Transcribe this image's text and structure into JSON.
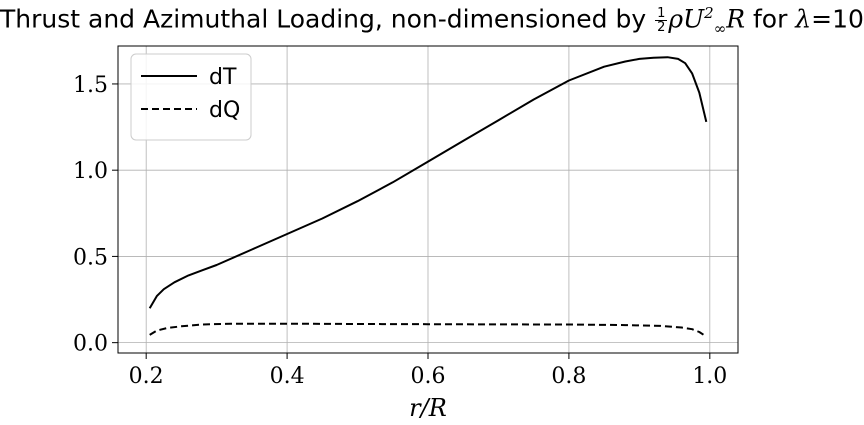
{
  "chart_data": {
    "type": "line",
    "title_prefix": "Thrust and Azimuthal Loading, non-dimensioned by",
    "title_frac_num": "1",
    "title_frac_den": "2",
    "title_math_rho_u": "ρU",
    "title_sup": "2",
    "title_sub": "∞",
    "title_math_r": "R",
    "title_for": "for",
    "title_lambda": "λ",
    "title_equals_value": "=10",
    "xlabel": "r/R",
    "ylabel": "",
    "xlim": [
      0.16,
      1.04
    ],
    "ylim": [
      -0.06,
      1.72
    ],
    "xticks": [
      0.2,
      0.4,
      0.6,
      0.8,
      1.0
    ],
    "xtick_labels": [
      "0.2",
      "0.4",
      "0.6",
      "0.8",
      "1.0"
    ],
    "yticks": [
      0.0,
      0.5,
      1.0,
      1.5
    ],
    "ytick_labels": [
      "0.0",
      "0.5",
      "1.0",
      "1.5"
    ],
    "grid": true,
    "legend_position": "top-left",
    "series": [
      {
        "name": "dT",
        "style": "solid",
        "color": "#000000",
        "x": [
          0.205,
          0.215,
          0.225,
          0.24,
          0.26,
          0.28,
          0.3,
          0.35,
          0.4,
          0.45,
          0.5,
          0.55,
          0.6,
          0.65,
          0.7,
          0.75,
          0.8,
          0.85,
          0.88,
          0.9,
          0.92,
          0.94,
          0.955,
          0.965,
          0.975,
          0.985,
          0.995
        ],
        "y": [
          0.2,
          0.27,
          0.31,
          0.35,
          0.39,
          0.42,
          0.45,
          0.54,
          0.63,
          0.72,
          0.82,
          0.93,
          1.05,
          1.17,
          1.29,
          1.41,
          1.52,
          1.6,
          1.63,
          1.645,
          1.652,
          1.655,
          1.645,
          1.62,
          1.56,
          1.45,
          1.28
        ]
      },
      {
        "name": "dQ",
        "style": "dashed",
        "color": "#000000",
        "x": [
          0.205,
          0.215,
          0.23,
          0.25,
          0.28,
          0.32,
          0.4,
          0.5,
          0.6,
          0.7,
          0.8,
          0.88,
          0.93,
          0.96,
          0.975,
          0.985,
          0.995
        ],
        "y": [
          0.045,
          0.07,
          0.085,
          0.095,
          0.105,
          0.11,
          0.11,
          0.108,
          0.107,
          0.106,
          0.105,
          0.102,
          0.097,
          0.088,
          0.078,
          0.062,
          0.035
        ]
      }
    ]
  }
}
